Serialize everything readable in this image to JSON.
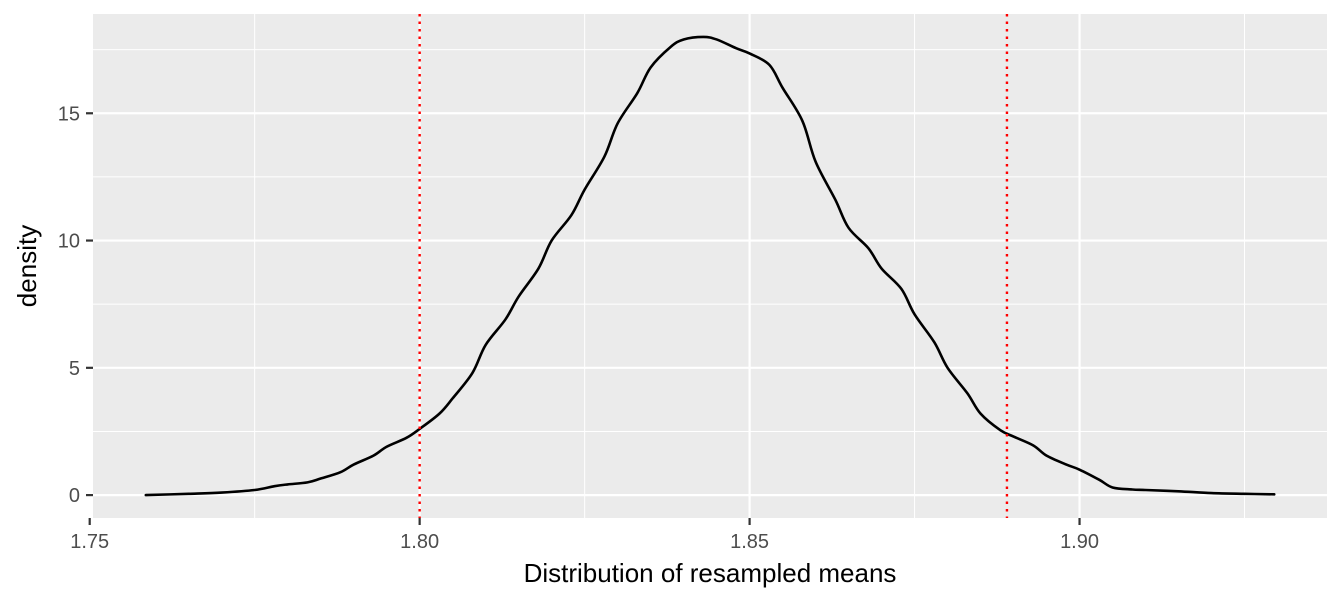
{
  "chart_data": {
    "type": "line",
    "title": "",
    "xlabel": "Distribution of resampled means",
    "ylabel": "density",
    "xlim": [
      1.7505,
      1.9375
    ],
    "ylim": [
      -0.9,
      18.9
    ],
    "x_ticks": [
      {
        "value": 1.75,
        "label": "1.75"
      },
      {
        "value": 1.8,
        "label": "1.80"
      },
      {
        "value": 1.85,
        "label": "1.85"
      },
      {
        "value": 1.9,
        "label": "1.90"
      }
    ],
    "y_ticks": [
      {
        "value": 0,
        "label": "0"
      },
      {
        "value": 5,
        "label": "5"
      },
      {
        "value": 10,
        "label": "10"
      },
      {
        "value": 15,
        "label": "15"
      }
    ],
    "x_minor_ticks": [
      1.775,
      1.825,
      1.875,
      1.925
    ],
    "y_minor_ticks": [
      2.5,
      7.5,
      12.5,
      17.5
    ],
    "grid": true,
    "legend": "none",
    "series": [
      {
        "color": "#000000",
        "x": [
          1.7585,
          1.765,
          1.77,
          1.775,
          1.778,
          1.78,
          1.783,
          1.785,
          1.788,
          1.79,
          1.793,
          1.795,
          1.798,
          1.8,
          1.803,
          1.805,
          1.808,
          1.81,
          1.813,
          1.815,
          1.818,
          1.82,
          1.823,
          1.825,
          1.828,
          1.83,
          1.833,
          1.835,
          1.838,
          1.84,
          1.843,
          1.845,
          1.848,
          1.85,
          1.853,
          1.855,
          1.858,
          1.86,
          1.863,
          1.865,
          1.868,
          1.87,
          1.873,
          1.875,
          1.878,
          1.88,
          1.883,
          1.885,
          1.888,
          1.89,
          1.893,
          1.895,
          1.898,
          1.9,
          1.903,
          1.905,
          1.908,
          1.91,
          1.915,
          1.92,
          1.925,
          1.9295
        ],
        "y": [
          0.0,
          0.05,
          0.1,
          0.2,
          0.35,
          0.42,
          0.5,
          0.65,
          0.9,
          1.2,
          1.55,
          1.9,
          2.25,
          2.6,
          3.2,
          3.8,
          4.8,
          5.9,
          6.9,
          7.8,
          8.9,
          10.0,
          11.0,
          12.0,
          13.3,
          14.6,
          15.8,
          16.8,
          17.6,
          17.9,
          18.0,
          17.9,
          17.55,
          17.35,
          16.9,
          16.0,
          14.7,
          13.1,
          11.6,
          10.5,
          9.7,
          8.9,
          8.1,
          7.1,
          6.0,
          5.0,
          4.0,
          3.2,
          2.55,
          2.3,
          1.95,
          1.55,
          1.2,
          1.0,
          0.6,
          0.3,
          0.22,
          0.2,
          0.15,
          0.08,
          0.05,
          0.03
        ]
      }
    ],
    "reference_lines": [
      {
        "axis": "x",
        "value": 1.8,
        "color": "#ff0000",
        "style": "dotted"
      },
      {
        "axis": "x",
        "value": 1.889,
        "color": "#ff0000",
        "style": "dotted"
      }
    ],
    "panel_background": "#ebebeb",
    "gridline_color": "#ffffff",
    "tick_color": "#333333",
    "tick_label_color": "#4d4d4d"
  }
}
